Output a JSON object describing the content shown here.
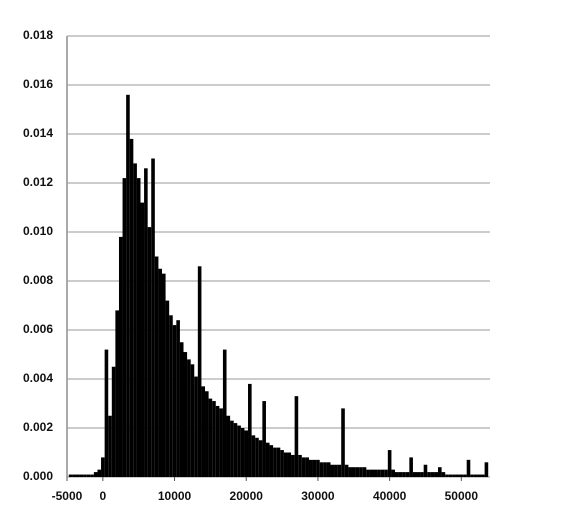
{
  "chart_data": {
    "type": "bar",
    "color": "#000000",
    "grid": true,
    "xlim": [
      -5000,
      54000
    ],
    "xticks": [
      -5000,
      0,
      10000,
      20000,
      30000,
      40000,
      50000
    ],
    "ylim": [
      0,
      0.018
    ],
    "yticks": [
      {
        "value": 0,
        "label": "0.000"
      },
      {
        "value": 0.002,
        "label": "0.002"
      },
      {
        "value": 0.004,
        "label": "0.004"
      },
      {
        "value": 0.006,
        "label": "0.006"
      },
      {
        "value": 0.008,
        "label": "0.008"
      },
      {
        "value": 0.01,
        "label": "0.010"
      },
      {
        "value": 0.012,
        "label": "0.012"
      },
      {
        "value": 0.014,
        "label": "0.014"
      },
      {
        "value": 0.016,
        "label": "0.016"
      },
      {
        "value": 0.018,
        "label": "0.018"
      }
    ],
    "x": [
      -4500,
      -4000,
      -3500,
      -3000,
      -2500,
      -2000,
      -1500,
      -1000,
      -500,
      0,
      500,
      1000,
      1500,
      2000,
      2500,
      3000,
      3500,
      4000,
      4500,
      5000,
      5500,
      6000,
      6500,
      7000,
      7500,
      8000,
      8500,
      9000,
      9500,
      10000,
      10500,
      11000,
      11500,
      12000,
      12500,
      13000,
      13500,
      14000,
      14500,
      15000,
      15500,
      16000,
      16500,
      17000,
      17500,
      18000,
      18500,
      19000,
      19500,
      20000,
      20500,
      21000,
      21500,
      22000,
      22500,
      23000,
      23500,
      24000,
      24500,
      25000,
      25500,
      26000,
      26500,
      27000,
      27500,
      28000,
      28500,
      29000,
      29500,
      30000,
      30500,
      31000,
      31500,
      32000,
      32500,
      33000,
      33500,
      34000,
      34500,
      35000,
      35500,
      36000,
      36500,
      37000,
      37500,
      38000,
      38500,
      39000,
      39500,
      40000,
      40500,
      41000,
      41500,
      42000,
      42500,
      43000,
      43500,
      44000,
      44500,
      45000,
      45500,
      46000,
      46500,
      47000,
      47500,
      48000,
      48500,
      49000,
      49500,
      50000,
      50500,
      51000,
      51500,
      52000,
      52500,
      53000,
      53500
    ],
    "values": [
      0.0001,
      0.0001,
      0.0001,
      0.0001,
      0.0001,
      0.0001,
      0.0001,
      0.0002,
      0.0003,
      0.0008,
      0.0052,
      0.0025,
      0.0045,
      0.0068,
      0.0098,
      0.0122,
      0.0156,
      0.0138,
      0.0128,
      0.0122,
      0.0112,
      0.0126,
      0.0102,
      0.013,
      0.009,
      0.0085,
      0.0083,
      0.0072,
      0.0066,
      0.0062,
      0.0064,
      0.0055,
      0.0051,
      0.0048,
      0.0046,
      0.0041,
      0.0086,
      0.0037,
      0.0035,
      0.0032,
      0.0031,
      0.0029,
      0.0028,
      0.0052,
      0.0025,
      0.0023,
      0.0022,
      0.0021,
      0.002,
      0.0019,
      0.0038,
      0.0017,
      0.0016,
      0.0015,
      0.0031,
      0.0014,
      0.0013,
      0.0012,
      0.0012,
      0.0011,
      0.001,
      0.001,
      0.0009,
      0.0033,
      0.0009,
      0.0008,
      0.0008,
      0.0007,
      0.0007,
      0.0007,
      0.0006,
      0.0006,
      0.0006,
      0.0005,
      0.0005,
      0.0005,
      0.0028,
      0.0005,
      0.0004,
      0.0004,
      0.0004,
      0.0004,
      0.0004,
      0.0003,
      0.0003,
      0.0003,
      0.0003,
      0.0003,
      0.0003,
      0.0011,
      0.0003,
      0.0002,
      0.0002,
      0.0002,
      0.0002,
      0.0008,
      0.0002,
      0.0002,
      0.0002,
      0.0005,
      0.0002,
      0.0002,
      0.0002,
      0.0004,
      0.0002,
      0.0001,
      0.0001,
      0.0001,
      0.0001,
      0.0001,
      0.0001,
      0.0007,
      0.0001,
      0.0001,
      0.0001,
      0.0001,
      0.0006
    ]
  }
}
